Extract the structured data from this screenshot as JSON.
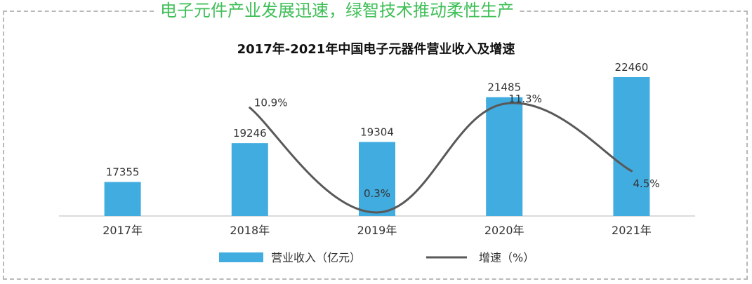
{
  "headline": "电子元件产业发展迅速，绿智技术推动柔性生产",
  "chart_data": {
    "type": "bar",
    "title": "2017年-2021年中国电子元器件营业收入及增速",
    "categories": [
      "2017年",
      "2018年",
      "2019年",
      "2020年",
      "2021年"
    ],
    "series": [
      {
        "name": "营业收入（亿元）",
        "type": "bar",
        "values": [
          17355,
          19246,
          19304,
          21485,
          22460
        ],
        "labels": [
          "17355",
          "19246",
          "19304",
          "21485",
          "22460"
        ],
        "color": "#41ace0"
      },
      {
        "name": "增速（%）",
        "type": "line",
        "values": [
          null,
          10.9,
          0.3,
          11.3,
          4.5
        ],
        "labels": [
          "",
          "10.9%",
          "0.3%",
          "11.3%",
          "4.5%"
        ],
        "color": "#595959"
      }
    ],
    "legend": "bottom",
    "grid": false
  }
}
